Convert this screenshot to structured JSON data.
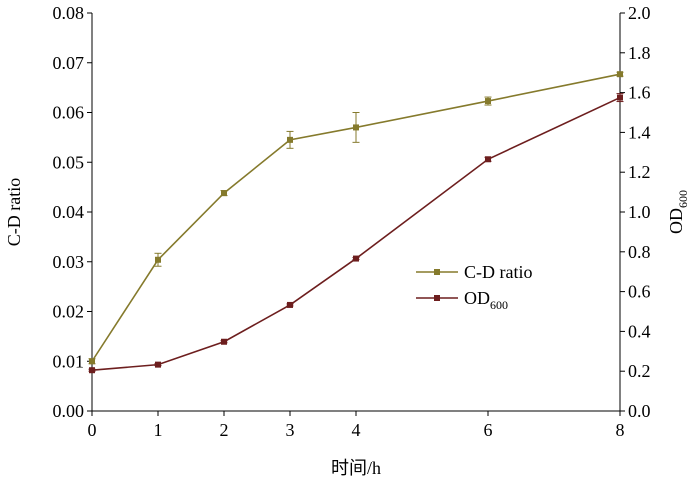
{
  "chart_data": {
    "type": "line",
    "x": [
      0,
      1,
      2,
      3,
      4,
      6,
      8
    ],
    "xlabel": "时间/h",
    "xticks": [
      "0",
      "1",
      "2",
      "3",
      "4",
      "6",
      "8"
    ],
    "xlim": [
      0,
      8
    ],
    "y_left": {
      "label": "C-D ratio",
      "ylim": [
        0,
        0.08
      ],
      "ticks": [
        "0.00",
        "0.01",
        "0.02",
        "0.03",
        "0.04",
        "0.05",
        "0.06",
        "0.07",
        "0.08"
      ]
    },
    "y_right": {
      "label_main": "OD",
      "label_sub": "600",
      "ylim": [
        0,
        2.0
      ],
      "ticks": [
        "0.0",
        "0.2",
        "0.4",
        "0.6",
        "0.8",
        "1.0",
        "1.2",
        "1.4",
        "1.6",
        "1.8",
        "2.0"
      ]
    },
    "series": [
      {
        "name": "C-D ratio",
        "name_main": "C-D ratio",
        "name_sub": "",
        "axis": "left",
        "color": "#857a2c",
        "values": [
          0.01,
          0.0304,
          0.0438,
          0.0545,
          0.057,
          0.0623,
          0.0677
        ],
        "errors": [
          0.0005,
          0.0013,
          0.0005,
          0.0017,
          0.003,
          0.0008,
          0.0004
        ]
      },
      {
        "name": "OD600",
        "name_main": "OD",
        "name_sub": "600",
        "axis": "right",
        "color": "#6d1e1e",
        "values": [
          0.205,
          0.233,
          0.348,
          0.533,
          0.766,
          1.265,
          1.575
        ],
        "errors": [
          0.005,
          0.005,
          0.005,
          0.005,
          0.005,
          0.01,
          0.02
        ]
      }
    ],
    "legend_position": "center-right",
    "grid": false
  }
}
